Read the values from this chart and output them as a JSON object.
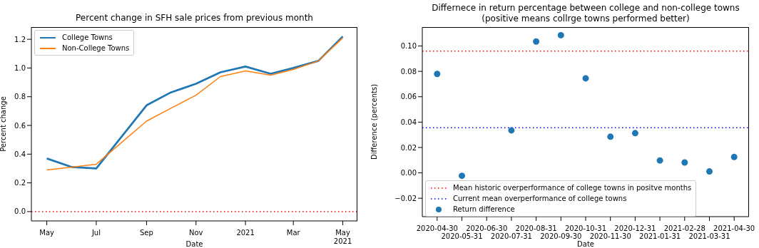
{
  "chart_data": [
    {
      "type": "line",
      "title": "Percent change in SFH sale prices from previous month",
      "xlabel": "Date",
      "ylabel": "Percent change",
      "x": [
        "2020-05",
        "2020-06",
        "2020-07",
        "2020-08",
        "2020-09",
        "2020-10",
        "2020-11",
        "2020-12",
        "2021-01",
        "2021-02",
        "2021-03",
        "2021-04",
        "2021-05"
      ],
      "xlim": [
        "2020-04-12",
        "2021-05-19"
      ],
      "xticks": [
        {
          "value": "2020-05",
          "label": "May"
        },
        {
          "value": "2020-07",
          "label": "Jul"
        },
        {
          "value": "2020-09",
          "label": "Sep"
        },
        {
          "value": "2020-11",
          "label": "Nov"
        },
        {
          "value": "2021-01",
          "label": "2021"
        },
        {
          "value": "2021-03",
          "label": "Mar"
        },
        {
          "value": "2021-05",
          "label": "May\n2021"
        }
      ],
      "ylim": [
        -0.065,
        1.285
      ],
      "yticks": [
        {
          "value": 0,
          "label": "0.0"
        },
        0.2,
        0.4,
        0.6,
        0.8,
        {
          "value": 1,
          "label": "1.0"
        },
        1.2
      ],
      "grid": false,
      "legend": "top left",
      "line_style": "solid",
      "series": [
        {
          "name": "College Towns",
          "color": "#1f77b4",
          "values": [
            0.37,
            0.31,
            0.3,
            0.52,
            0.74,
            0.83,
            0.89,
            0.97,
            1.01,
            0.96,
            1.0,
            1.05,
            1.22
          ]
        },
        {
          "name": "Non-College Towns",
          "color": "#ff7f0e",
          "values": [
            0.29,
            0.31,
            0.33,
            0.48,
            0.63,
            0.72,
            0.81,
            0.94,
            0.98,
            0.95,
            0.99,
            1.05,
            1.21
          ]
        }
      ],
      "ref_lines": [
        {
          "axis": "y",
          "value": 0,
          "color": "#ff0000",
          "line_style": "dotted"
        }
      ]
    },
    {
      "type": "scatter",
      "title": "Differnece in return percentage between college and non-college towns\n(positive means collrge towns performed better)",
      "xlabel": "Date",
      "ylabel": "Difference (percents)",
      "categories": [
        "2020-04-30",
        "2020-05-31",
        "2020-06-30",
        "2020-07-31",
        "2020-08-31",
        "2020-09-30",
        "2020-10-31",
        "2020-11-30",
        "2020-12-31",
        "2021-01-31",
        "2021-02-28",
        "2021-03-31",
        "2021-04-30"
      ],
      "ylim": [
        -0.0345,
        0.1149
      ],
      "yticks": [
        {
          "value": -0.02,
          "label": "−0.02"
        },
        {
          "value": 0,
          "label": "0.00"
        },
        {
          "value": 0.02,
          "label": "0.02"
        },
        {
          "value": 0.04,
          "label": "0.04"
        },
        {
          "value": 0.06,
          "label": "0.06"
        },
        {
          "value": 0.08,
          "label": "0.08"
        },
        {
          "value": 0.1,
          "label": "0.10"
        }
      ],
      "grid": false,
      "legend": "bottom left",
      "marker": "circle",
      "series": [
        {
          "name": "Return difference",
          "color": "#1f77b4",
          "values": [
            0.078,
            -0.0023,
            null,
            0.0335,
            0.1035,
            0.1085,
            0.0745,
            0.0285,
            0.0313,
            0.0098,
            0.0082,
            0.0011,
            0.0125
          ]
        }
      ],
      "ref_lines": [
        {
          "axis": "y",
          "value": 0.096,
          "color": "#ff0000",
          "line_style": "dotted",
          "label": "Mean historic overperformance of college towns in positve months"
        },
        {
          "axis": "y",
          "value": 0.0355,
          "color": "#0000ff",
          "line_style": "dotted",
          "label": "Current mean overperformance of college towns"
        }
      ]
    }
  ]
}
